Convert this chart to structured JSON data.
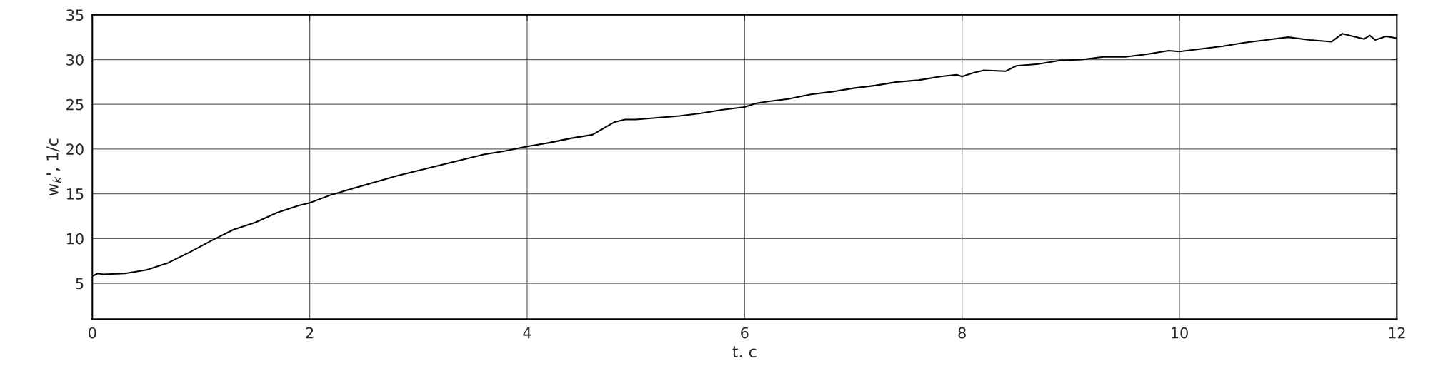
{
  "chart_data": {
    "type": "line",
    "xlabel": "t. c",
    "ylabel": "w$_{k}$', 1/c",
    "xlim": [
      0,
      12
    ],
    "xticks": [
      0,
      2,
      4,
      6,
      8,
      10,
      12
    ],
    "ylim": [
      1,
      35
    ],
    "yticks": [
      5,
      10,
      15,
      20,
      25,
      30,
      35
    ],
    "grid": true,
    "series": [
      {
        "color": "#000000",
        "x": [
          0,
          0.05,
          0.1,
          0.3,
          0.5,
          0.7,
          0.9,
          1.1,
          1.3,
          1.5,
          1.7,
          1.9,
          2.0,
          2.2,
          2.4,
          2.6,
          2.8,
          3.0,
          3.2,
          3.4,
          3.6,
          3.8,
          4.0,
          4.2,
          4.4,
          4.6,
          4.8,
          4.9,
          5.0,
          5.2,
          5.4,
          5.6,
          5.8,
          6.0,
          6.1,
          6.2,
          6.4,
          6.6,
          6.8,
          7.0,
          7.2,
          7.4,
          7.6,
          7.8,
          7.95,
          8.0,
          8.1,
          8.2,
          8.4,
          8.5,
          8.7,
          8.9,
          9.1,
          9.3,
          9.5,
          9.7,
          9.9,
          10.0,
          10.2,
          10.4,
          10.6,
          10.8,
          11.0,
          11.2,
          11.4,
          11.5,
          11.7,
          11.75,
          11.8,
          11.9,
          12.0
        ],
        "values": [
          5.8,
          6.1,
          6.0,
          6.1,
          6.5,
          7.3,
          8.5,
          9.8,
          11.0,
          11.8,
          12.9,
          13.7,
          14.0,
          14.9,
          15.6,
          16.3,
          17.0,
          17.6,
          18.2,
          18.8,
          19.4,
          19.8,
          20.3,
          20.7,
          21.2,
          21.6,
          23.0,
          23.3,
          23.3,
          23.5,
          23.7,
          24.0,
          24.4,
          24.7,
          25.1,
          25.3,
          25.6,
          26.1,
          26.4,
          26.8,
          27.1,
          27.5,
          27.7,
          28.1,
          28.3,
          28.1,
          28.5,
          28.8,
          28.7,
          29.3,
          29.5,
          29.9,
          30.0,
          30.3,
          30.3,
          30.6,
          31.0,
          30.9,
          31.2,
          31.5,
          31.9,
          32.2,
          32.5,
          32.2,
          32.0,
          32.9,
          32.3,
          32.7,
          32.2,
          32.6,
          32.4
        ]
      }
    ]
  }
}
